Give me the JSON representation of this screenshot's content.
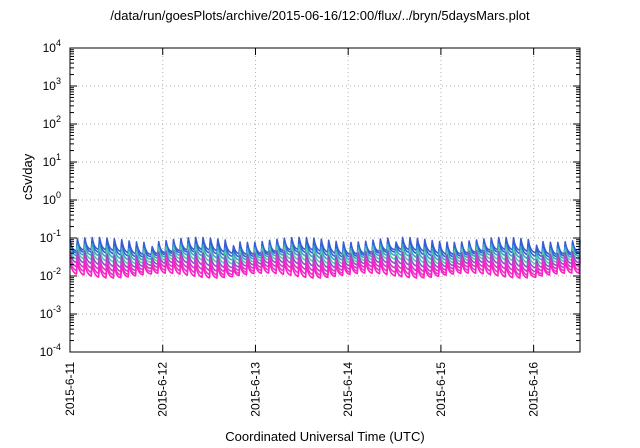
{
  "chart_data": {
    "type": "line",
    "title": "/data/run/goesPlots/archive/2015-06-16/12:00/flux/../bryn/5daysMars.plot",
    "xlabel": "Coordinated Universal Time (UTC)",
    "ylabel": "cSv/day",
    "yscale": "log",
    "ylim": [
      0.0001,
      10000
    ],
    "xlim": [
      "2015-06-11",
      "2015-06-16T12:00"
    ],
    "y_ticks": [
      {
        "base": "10",
        "exp": "-4"
      },
      {
        "base": "10",
        "exp": "-3"
      },
      {
        "base": "10",
        "exp": "-2"
      },
      {
        "base": "10",
        "exp": "-1"
      },
      {
        "base": "10",
        "exp": "0"
      },
      {
        "base": "10",
        "exp": "1"
      },
      {
        "base": "10",
        "exp": "2"
      },
      {
        "base": "10",
        "exp": "3"
      },
      {
        "base": "10",
        "exp": "4"
      }
    ],
    "x_ticks": [
      "2015-6-11",
      "2015-6-12",
      "2015-6-13",
      "2015-6-14",
      "2015-6-15",
      "2015-6-16"
    ],
    "grid": true,
    "cycles_per_day": 12.6,
    "series": [
      {
        "color": "#3b5bd0",
        "peak": 0.09,
        "trough": 0.042
      },
      {
        "color": "#2f5fd9",
        "peak": 0.075,
        "trough": 0.036
      },
      {
        "color": "#3aa3c8",
        "peak": 0.06,
        "trough": 0.03
      },
      {
        "color": "#55c9a6",
        "peak": 0.05,
        "trough": 0.024
      },
      {
        "color": "#8a4fd0",
        "peak": 0.04,
        "trough": 0.019
      },
      {
        "color": "#c23fbf",
        "peak": 0.031,
        "trough": 0.015
      },
      {
        "color": "#e438c8",
        "peak": 0.026,
        "trough": 0.012
      },
      {
        "color": "#ff1fc8",
        "peak": 0.022,
        "trough": 0.01
      }
    ]
  }
}
